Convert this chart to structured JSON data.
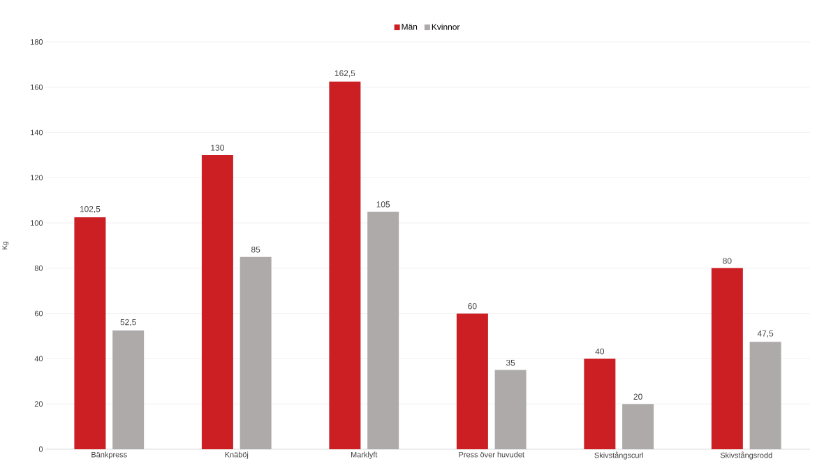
{
  "chart_data": {
    "type": "bar",
    "ylabel": "Kg",
    "categories": [
      "Bänkpress",
      "Knäböj",
      "Marklyft",
      "Press över huvudet",
      "Skivstångscurl",
      "Skivstångsrodd"
    ],
    "series": [
      {
        "name": "Män",
        "color": "#cc1f24",
        "values": [
          102.5,
          130,
          162.5,
          60,
          40,
          80
        ],
        "value_labels": [
          "102,5",
          "130",
          "162,5",
          "60",
          "40",
          "80"
        ]
      },
      {
        "name": "Kvinnor",
        "color": "#aeaaaa",
        "values": [
          52.5,
          85,
          105,
          35,
          20,
          47.5
        ],
        "value_labels": [
          "52,5",
          "85",
          "105",
          "35",
          "20",
          "47,5"
        ]
      }
    ],
    "ylim": [
      0,
      180
    ],
    "yticks": [
      0,
      20,
      40,
      60,
      80,
      100,
      120,
      140,
      160,
      180
    ],
    "grid": "y",
    "legend": "top"
  }
}
